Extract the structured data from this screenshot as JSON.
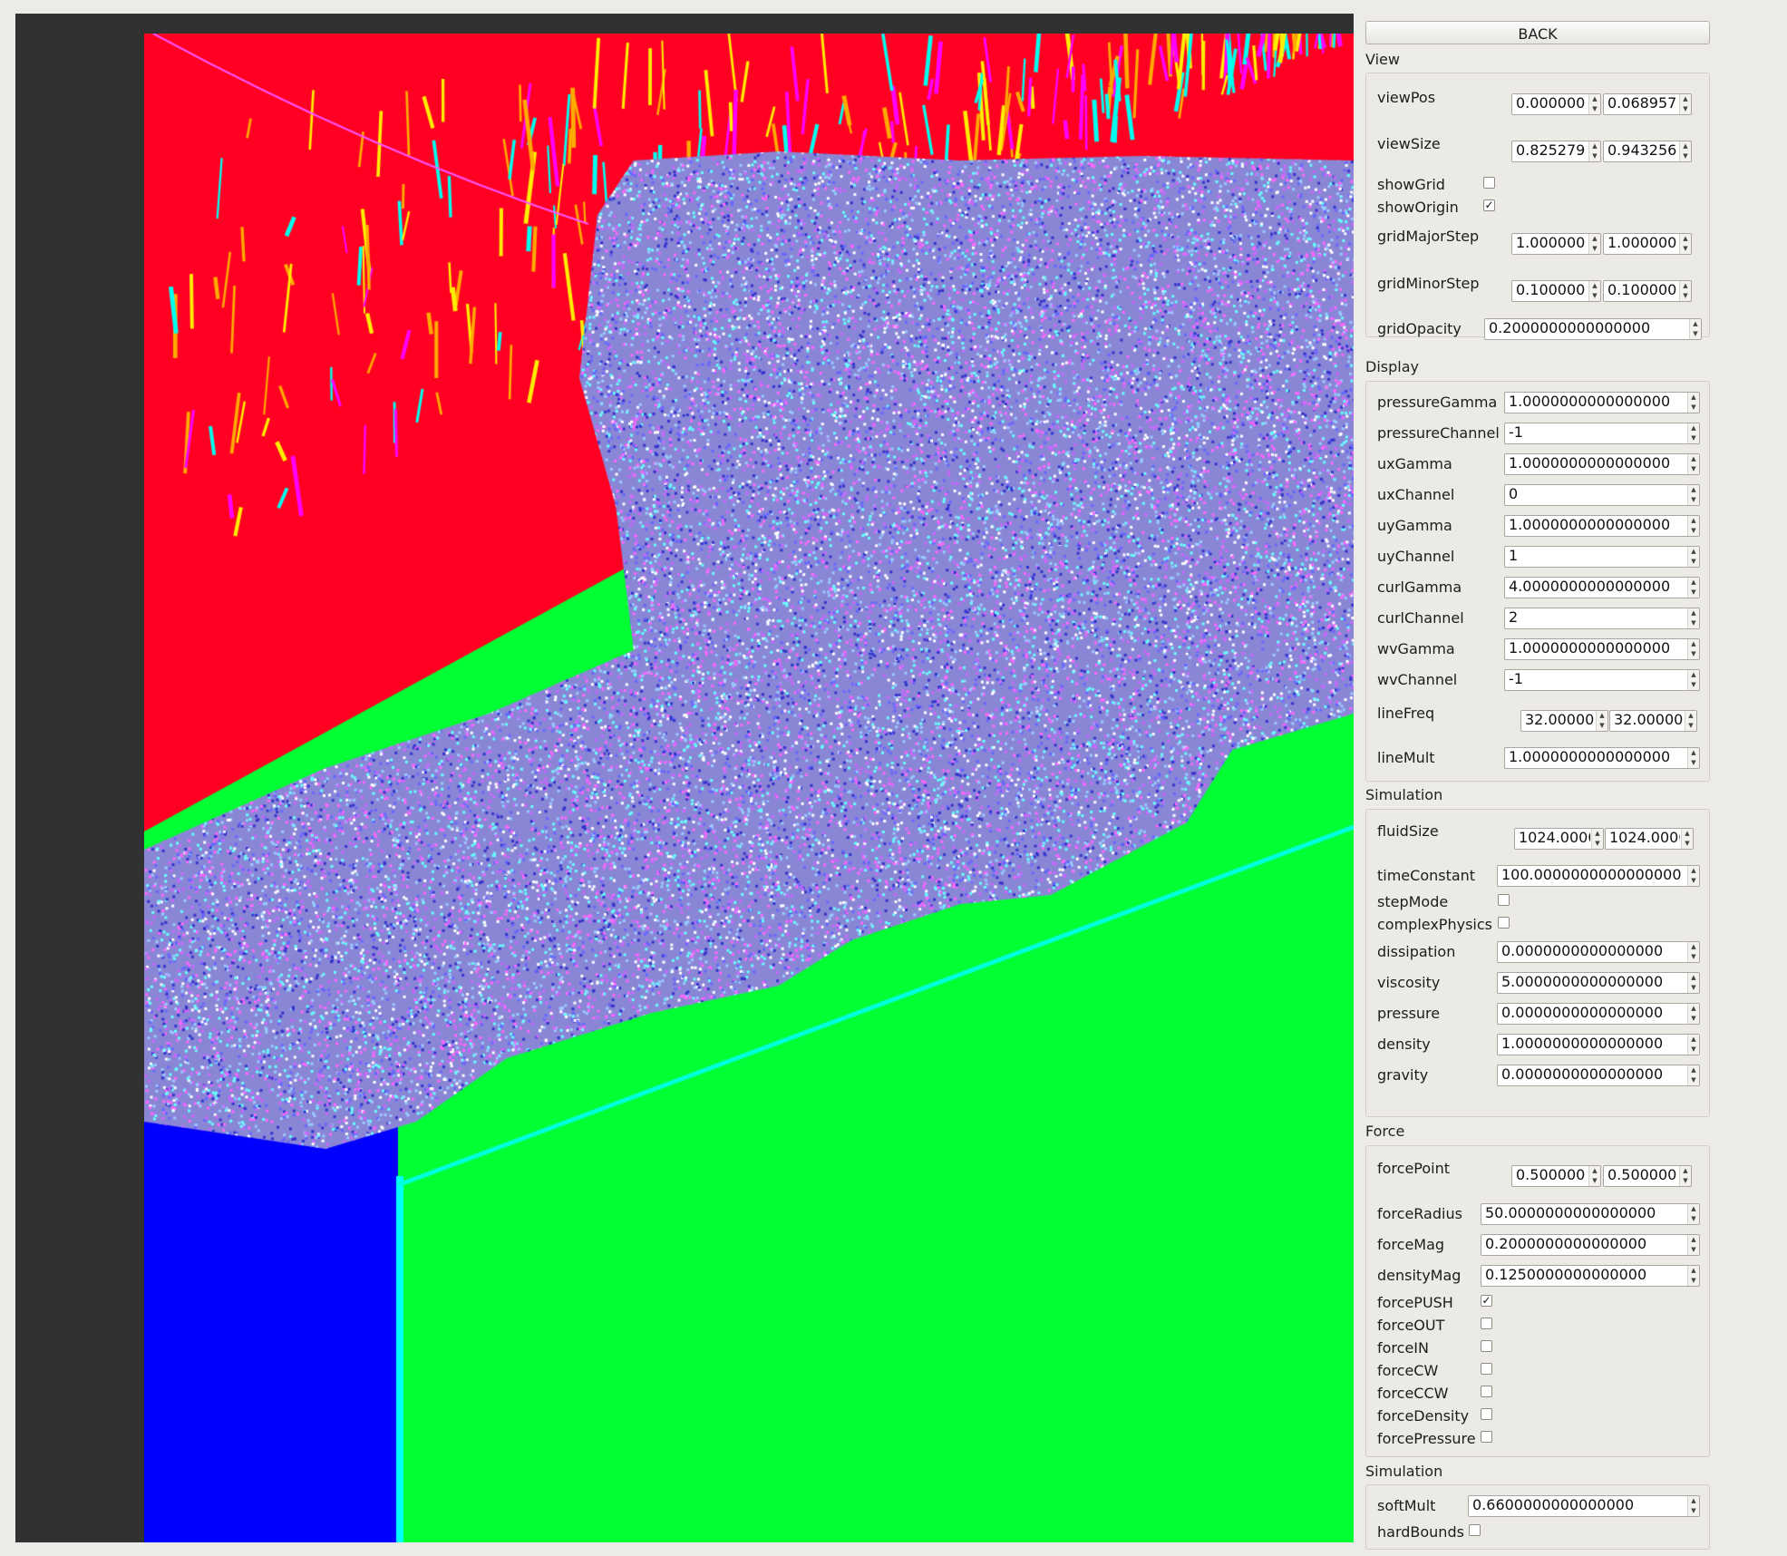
{
  "back_label": "BACK",
  "view": {
    "title": "View",
    "viewPos": {
      "label": "viewPos",
      "values": [
        "0.000000",
        "0.068957"
      ]
    },
    "viewSize": {
      "label": "viewSize",
      "values": [
        "0.825279",
        "0.943256"
      ]
    },
    "showGrid": {
      "label": "showGrid",
      "checked": false
    },
    "showOrigin": {
      "label": "showOrigin",
      "checked": true
    },
    "gridMajorStep": {
      "label": "gridMajorStep",
      "values": [
        "1.000000",
        "1.000000"
      ]
    },
    "gridMinorStep": {
      "label": "gridMinorStep",
      "values": [
        "0.100000",
        "0.100000"
      ]
    },
    "gridOpacity": {
      "label": "gridOpacity",
      "value": "0.2000000000000000"
    }
  },
  "display": {
    "title": "Display",
    "fields": [
      {
        "label": "pressureGamma",
        "value": "1.0000000000000000"
      },
      {
        "label": "pressureChannel",
        "value": "-1"
      },
      {
        "label": "uxGamma",
        "value": "1.0000000000000000"
      },
      {
        "label": "uxChannel",
        "value": "0"
      },
      {
        "label": "uyGamma",
        "value": "1.0000000000000000"
      },
      {
        "label": "uyChannel",
        "value": "1"
      },
      {
        "label": "curlGamma",
        "value": "4.0000000000000000"
      },
      {
        "label": "curlChannel",
        "value": "2"
      },
      {
        "label": "wvGamma",
        "value": "1.0000000000000000"
      },
      {
        "label": "wvChannel",
        "value": "-1"
      }
    ],
    "lineFreq": {
      "label": "lineFreq",
      "values": [
        "32.000000",
        "32.000000"
      ]
    },
    "lineMult": {
      "label": "lineMult",
      "value": "1.0000000000000000"
    }
  },
  "simulation": {
    "title": "Simulation",
    "fluidSize": {
      "label": "fluidSize",
      "values": [
        "1024.000000",
        "1024.000000"
      ]
    },
    "timeConstant": {
      "label": "timeConstant",
      "value": "100.0000000000000000"
    },
    "stepMode": {
      "label": "stepMode",
      "checked": false
    },
    "complexPhysics": {
      "label": "complexPhysics",
      "checked": false
    },
    "fields": [
      {
        "label": "dissipation",
        "value": "0.0000000000000000"
      },
      {
        "label": "viscosity",
        "value": "5.0000000000000000"
      },
      {
        "label": "pressure",
        "value": "0.0000000000000000"
      },
      {
        "label": "density",
        "value": "1.0000000000000000"
      },
      {
        "label": "gravity",
        "value": "0.0000000000000000"
      }
    ]
  },
  "force": {
    "title": "Force",
    "forcePoint": {
      "label": "forcePoint",
      "values": [
        "0.500000",
        "0.500000"
      ]
    },
    "fields": [
      {
        "label": "forceRadius",
        "value": "50.0000000000000000"
      },
      {
        "label": "forceMag",
        "value": "0.2000000000000000"
      },
      {
        "label": "densityMag",
        "value": "0.1250000000000000"
      }
    ],
    "checks": [
      {
        "label": "forcePUSH",
        "checked": true
      },
      {
        "label": "forceOUT",
        "checked": false
      },
      {
        "label": "forceIN",
        "checked": false
      },
      {
        "label": "forceCW",
        "checked": false
      },
      {
        "label": "forceCCW",
        "checked": false
      },
      {
        "label": "forceDensity",
        "checked": false
      },
      {
        "label": "forcePressure",
        "checked": false
      }
    ]
  },
  "simulation2": {
    "title": "Simulation",
    "softMult": {
      "label": "softMult",
      "value": "0.6600000000000000"
    },
    "hardBounds": {
      "label": "hardBounds",
      "checked": false
    }
  },
  "colors": {
    "red_region": "#ff0022",
    "blue_region": "#0000ff",
    "green_region": "#00ff33",
    "noise_base": "#8a86d6",
    "viewport_bg": "#313131",
    "panel_bg": "#edebe7"
  }
}
